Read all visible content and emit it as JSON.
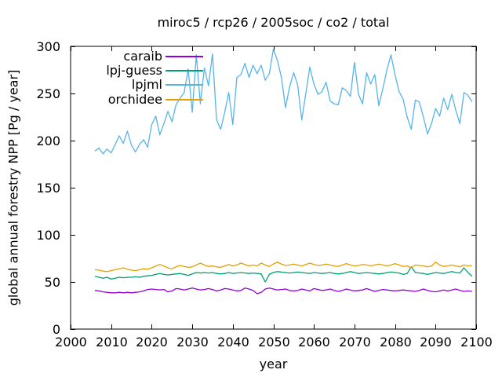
{
  "chart_data": {
    "type": "line",
    "title": "miroc5 / rcp26 / 2005soc / co2 / total",
    "xlabel": "year",
    "ylabel": "global annual forestry NPP [Pg / year]",
    "xlim": [
      2000,
      2100
    ],
    "ylim": [
      0,
      300
    ],
    "xticks": [
      2000,
      2010,
      2020,
      2030,
      2040,
      2050,
      2060,
      2070,
      2080,
      2090,
      2100
    ],
    "yticks": [
      0,
      50,
      100,
      150,
      200,
      250,
      300
    ],
    "grid": false,
    "legend_position": "top-left-inside",
    "x_start": 2006,
    "x_end": 2099,
    "x_step": 1,
    "series": [
      {
        "name": "caraib",
        "color": "#9400d3",
        "values": [
          41,
          40.5,
          39.5,
          39,
          38.5,
          38.5,
          39,
          38.5,
          39,
          38.5,
          39,
          39.5,
          40.5,
          42,
          42.5,
          42,
          41.5,
          42,
          39.5,
          40.5,
          43,
          42.5,
          41.5,
          42.5,
          43.5,
          42.5,
          41.5,
          42,
          43,
          42,
          40.5,
          41.5,
          43,
          42.5,
          41.5,
          40.5,
          41,
          43.5,
          42.5,
          41,
          37.5,
          39,
          42.5,
          43.5,
          42.5,
          41.5,
          42,
          42.5,
          41,
          40.5,
          41,
          42.5,
          41.5,
          40.5,
          43,
          42,
          41,
          41.5,
          42.5,
          41,
          40,
          41,
          42.5,
          41.5,
          40.5,
          41,
          41.5,
          43,
          41.5,
          40,
          41,
          42,
          41.5,
          41,
          40.5,
          41,
          41.5,
          41,
          40.5,
          40,
          41,
          42.5,
          41,
          40,
          39.5,
          40.5,
          41.5,
          40.5,
          41.5,
          42.5,
          41,
          40,
          40.5,
          40
        ]
      },
      {
        "name": "lpj-guess",
        "color": "#009e73",
        "values": [
          56,
          55,
          54,
          55,
          53,
          54,
          55,
          54.5,
          55,
          55,
          55.5,
          55,
          56,
          56.5,
          57,
          58,
          59,
          58,
          57.5,
          58,
          58.5,
          59,
          58,
          57,
          58.5,
          60,
          59.5,
          60,
          59.5,
          60,
          59,
          58.5,
          59,
          60,
          59,
          59.5,
          60,
          59.5,
          59,
          59.5,
          59,
          58.5,
          50,
          58,
          60,
          61,
          60.5,
          60,
          59.5,
          60,
          60.5,
          60,
          59.5,
          59,
          60,
          59.5,
          59,
          59.5,
          60,
          59,
          58.5,
          59,
          60,
          61,
          60,
          59,
          59.5,
          60,
          59.5,
          59,
          58.5,
          59,
          60,
          60.5,
          60,
          59.5,
          58,
          59,
          66,
          60,
          59.5,
          59,
          58,
          59,
          60,
          59.5,
          59,
          60,
          61,
          60,
          59.5,
          65,
          60,
          56
        ]
      },
      {
        "name": "lpjml",
        "color": "#56b4e9",
        "values": [
          189,
          192,
          186,
          191,
          187,
          196,
          205,
          197,
          210,
          195,
          188,
          196,
          201,
          193,
          217,
          226,
          206,
          218,
          231,
          220,
          238,
          245,
          251,
          276,
          230,
          291,
          239,
          277,
          258,
          292,
          222,
          212,
          230,
          251,
          217,
          267,
          270,
          282,
          267,
          280,
          271,
          280,
          264,
          271,
          297,
          285,
          267,
          235,
          257,
          272,
          259,
          222,
          250,
          278,
          260,
          249,
          252,
          262,
          242,
          239,
          238,
          256,
          253,
          247,
          283,
          249,
          239,
          272,
          260,
          270,
          237,
          255,
          275,
          291,
          270,
          252,
          244,
          225,
          212,
          243,
          241,
          225,
          207,
          218,
          234,
          226,
          245,
          233,
          249,
          232,
          218,
          251,
          248,
          241
        ]
      },
      {
        "name": "orchidee",
        "color": "#e69f00",
        "values": [
          63,
          62.5,
          61.5,
          61,
          62,
          63,
          64,
          65,
          63.5,
          62.5,
          62,
          63,
          64,
          63.5,
          65,
          67,
          68.5,
          67,
          65,
          64,
          66,
          67.5,
          66.5,
          65.5,
          66,
          68,
          70,
          68,
          66.5,
          67,
          66,
          65.5,
          67,
          68.5,
          67,
          68,
          70,
          68.5,
          67,
          68,
          67,
          70,
          68,
          66.5,
          69,
          71,
          69,
          67.5,
          68,
          69,
          68,
          67,
          68.5,
          70,
          68.5,
          67.5,
          68,
          69,
          68,
          67,
          66.5,
          68,
          69.5,
          68,
          67,
          67.5,
          68.5,
          68,
          67,
          68,
          69,
          68,
          67,
          68,
          69.5,
          68,
          66.5,
          67,
          65,
          68,
          67.5,
          67,
          66,
          67,
          71,
          68,
          66.5,
          67,
          68,
          67,
          66,
          68,
          67,
          67.5
        ]
      }
    ]
  }
}
